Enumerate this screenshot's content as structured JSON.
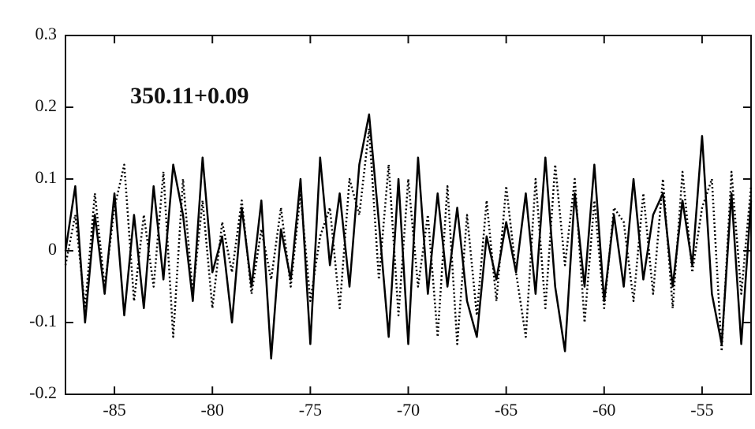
{
  "chart_data": {
    "type": "line",
    "annotation": "350.11+0.09",
    "x": [
      -87.5,
      -87,
      -86.5,
      -86,
      -85.5,
      -85,
      -84.5,
      -84,
      -83.5,
      -83,
      -82.5,
      -82,
      -81.5,
      -81,
      -80.5,
      -80,
      -79.5,
      -79,
      -78.5,
      -78,
      -77.5,
      -77,
      -76.5,
      -76,
      -75.5,
      -75,
      -74.5,
      -74,
      -73.5,
      -73,
      -72.5,
      -72,
      -71.5,
      -71,
      -70.5,
      -70,
      -69.5,
      -69,
      -68.5,
      -68,
      -67.5,
      -67,
      -66.5,
      -66,
      -65.5,
      -65,
      -64.5,
      -64,
      -63.5,
      -63,
      -62.5,
      -62,
      -61.5,
      -61,
      -60.5,
      -60,
      -59.5,
      -59,
      -58.5,
      -58,
      -57.5,
      -57,
      -56.5,
      -56,
      -55.5,
      -55,
      -54.5,
      -54,
      -53.5,
      -53,
      -52.5
    ],
    "series": [
      {
        "color": "#000000",
        "line_style": "solid",
        "values": [
          0,
          0.09,
          -0.1,
          0.05,
          -0.06,
          0.08,
          -0.09,
          0.05,
          -0.08,
          0.09,
          -0.04,
          0.12,
          0.05,
          -0.07,
          0.13,
          -0.03,
          0.02,
          -0.1,
          0.06,
          -0.05,
          0.07,
          -0.15,
          0.03,
          -0.04,
          0.1,
          -0.13,
          0.13,
          -0.02,
          0.08,
          -0.05,
          0.12,
          0.19,
          0.04,
          -0.12,
          0.1,
          -0.13,
          0.13,
          -0.06,
          0.08,
          -0.05,
          0.06,
          -0.07,
          -0.12,
          0.02,
          -0.04,
          0.04,
          -0.03,
          0.08,
          -0.06,
          0.13,
          -0.05,
          -0.14,
          0.08,
          -0.05,
          0.12,
          -0.07,
          0.05,
          -0.05,
          0.1,
          -0.04,
          0.05,
          0.08,
          -0.05,
          0.07,
          -0.02,
          0.16,
          -0.06,
          -0.13,
          0.08,
          -0.13,
          0.07
        ]
      },
      {
        "color": "#000000",
        "line_style": "dotted",
        "values": [
          -0.02,
          0.05,
          -0.08,
          0.08,
          -0.05,
          0.06,
          0.12,
          -0.07,
          0.05,
          -0.05,
          0.11,
          -0.12,
          0.1,
          -0.06,
          0.07,
          -0.08,
          0.04,
          -0.03,
          0.07,
          -0.06,
          0.03,
          -0.04,
          0.06,
          -0.05,
          0.08,
          -0.07,
          0.02,
          0.06,
          -0.08,
          0.1,
          0.05,
          0.17,
          -0.04,
          0.12,
          -0.09,
          0.1,
          -0.05,
          0.05,
          -0.12,
          0.09,
          -0.13,
          0.05,
          -0.09,
          0.07,
          -0.07,
          0.09,
          -0.03,
          -0.12,
          0.1,
          -0.08,
          0.12,
          -0.02,
          0.1,
          -0.1,
          0.07,
          -0.08,
          0.06,
          0.04,
          -0.07,
          0.08,
          -0.06,
          0.1,
          -0.08,
          0.11,
          -0.03,
          0.06,
          0.1,
          -0.14,
          0.11,
          -0.06,
          0.09
        ]
      }
    ],
    "xlim": [
      -87.5,
      -52.5
    ],
    "xticks": [
      -85,
      -80,
      -75,
      -70,
      -65,
      -60,
      -55
    ],
    "ylim": [
      -0.2,
      0.3
    ],
    "yticks": [
      -0.2,
      -0.1,
      0,
      0.1,
      0.2,
      0.3
    ]
  }
}
